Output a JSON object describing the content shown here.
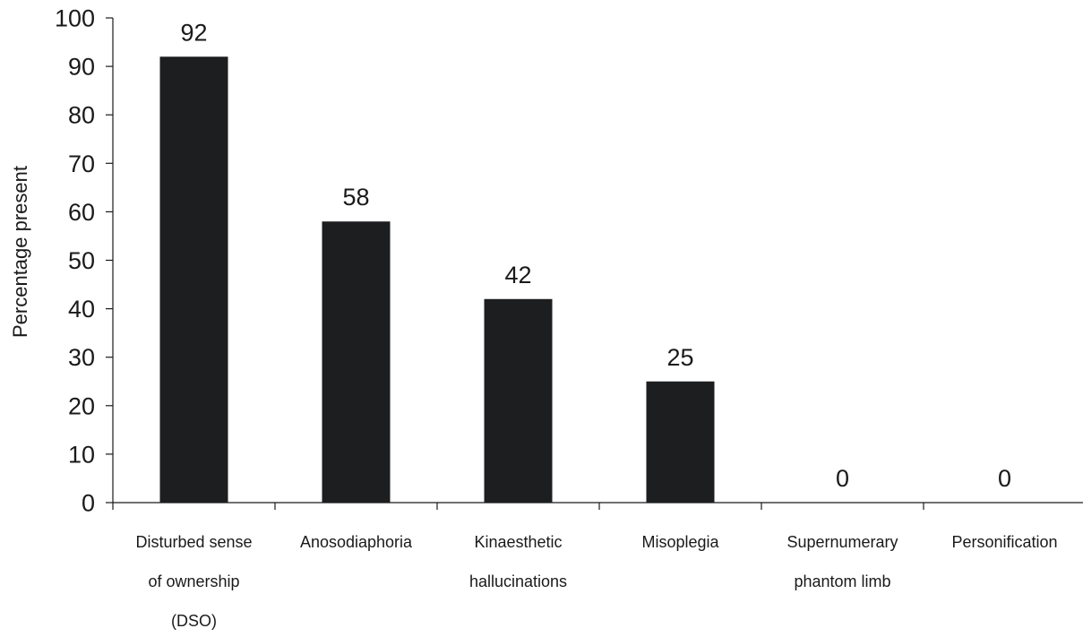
{
  "chart_data": {
    "type": "bar",
    "title": "",
    "xlabel": "",
    "ylabel": "Percentage present",
    "ylim": [
      0,
      100
    ],
    "yticks": [
      0,
      10,
      20,
      30,
      40,
      50,
      60,
      70,
      80,
      90,
      100
    ],
    "categories": [
      [
        "Disturbed sense",
        "of ownership",
        "(DSO)"
      ],
      [
        "Anosodiaphoria"
      ],
      [
        "Kinaesthetic",
        "hallucinations"
      ],
      [
        "Misoplegia"
      ],
      [
        "Supernumerary",
        "phantom limb"
      ],
      [
        "Personification"
      ]
    ],
    "values": [
      92,
      58,
      42,
      25,
      0,
      0
    ],
    "data_labels": [
      "92",
      "58",
      "42",
      "25",
      "0",
      "0"
    ],
    "bar_color": "#1c1e20",
    "grid": false,
    "legend": "none"
  }
}
